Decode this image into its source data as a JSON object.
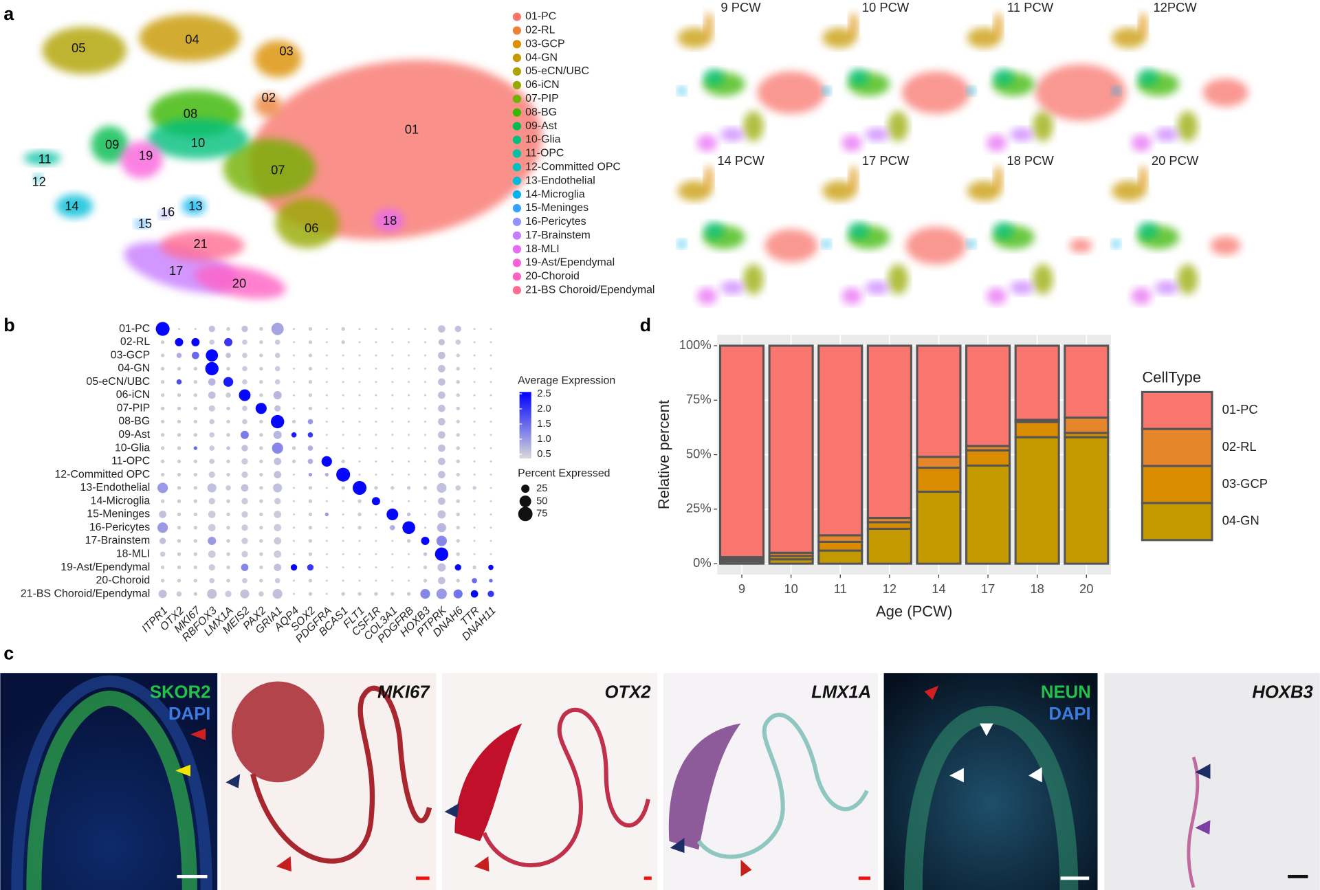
{
  "panel_labels": [
    "a",
    "b",
    "c",
    "d"
  ],
  "umap": {
    "clusters": [
      {
        "name": "01-PC",
        "color": "#f8766d"
      },
      {
        "name": "02-RL",
        "color": "#ec8239"
      },
      {
        "name": "03-GCP",
        "color": "#db8e00"
      },
      {
        "name": "04-GN",
        "color": "#c79800"
      },
      {
        "name": "05-eCN/UBC",
        "color": "#b0a100"
      },
      {
        "name": "06-iCN",
        "color": "#96a900"
      },
      {
        "name": "07-PIP",
        "color": "#72b000"
      },
      {
        "name": "08-BG",
        "color": "#39b600"
      },
      {
        "name": "09-Ast",
        "color": "#00bb4e"
      },
      {
        "name": "10-Glia",
        "color": "#00bf7d"
      },
      {
        "name": "11-OPC",
        "color": "#00c1a3"
      },
      {
        "name": "12-Committed OPC",
        "color": "#00c0c2"
      },
      {
        "name": "13-Endothelial",
        "color": "#00bcd8"
      },
      {
        "name": "14-Microglia",
        "color": "#00b4ef"
      },
      {
        "name": "15-Meninges",
        "color": "#35a2ff"
      },
      {
        "name": "16-Pericytes",
        "color": "#9590ff"
      },
      {
        "name": "17-Brainstem",
        "color": "#c77cff"
      },
      {
        "name": "18-MLI",
        "color": "#e76bf3"
      },
      {
        "name": "19-Ast/Ependymal",
        "color": "#fa62db"
      },
      {
        "name": "20-Choroid",
        "color": "#ff61c3"
      },
      {
        "name": "21-BS Choroid/Ependymal",
        "color": "#ff6c91"
      }
    ],
    "map_labels": [
      "01",
      "02",
      "03",
      "04",
      "05",
      "06",
      "07",
      "08",
      "09",
      "10",
      "11",
      "12",
      "13",
      "14",
      "15",
      "16",
      "17",
      "18",
      "19",
      "20",
      "21"
    ],
    "timepoints": [
      "9 PCW",
      "10 PCW",
      "11 PCW",
      "12PCW",
      "14 PCW",
      "17 PCW",
      "18 PCW",
      "20 PCW"
    ]
  },
  "chart_data": [
    {
      "type": "dot",
      "categories": [
        "ITPR1",
        "OTX2",
        "MKI67",
        "RBFOX3",
        "LMX1A",
        "MEIS2",
        "PAX2",
        "GRIA1",
        "AQP4",
        "SOX2",
        "PDGFRA",
        "BCAS1",
        "FLT1",
        "CSF1R",
        "COL3A1",
        "PDGFRB",
        "HOXB3",
        "PTPRK",
        "DNAH6",
        "TTR",
        "DNAH11"
      ],
      "rows": [
        "01-PC",
        "02-RL",
        "03-GCP",
        "04-GN",
        "05-eCN/UBC",
        "06-iCN",
        "07-PIP",
        "08-BG",
        "09-Ast",
        "10-Glia",
        "11-OPC",
        "12-Committed OPC",
        "13-Endothelial",
        "14-Microglia",
        "15-Meninges",
        "16-Pericytes",
        "17-Brainstem",
        "18-MLI",
        "19-Ast/Ependymal",
        "20-Choroid",
        "21-BS Choroid/Ependymal"
      ],
      "percent": [
        [
          70,
          0,
          0,
          15,
          5,
          15,
          5,
          55,
          0,
          5,
          0,
          5,
          0,
          0,
          0,
          0,
          0,
          20,
          15,
          0,
          0
        ],
        [
          5,
          25,
          25,
          10,
          25,
          10,
          5,
          10,
          0,
          5,
          0,
          5,
          0,
          0,
          0,
          0,
          0,
          15,
          10,
          0,
          0
        ],
        [
          5,
          10,
          20,
          55,
          10,
          10,
          5,
          10,
          0,
          5,
          0,
          0,
          0,
          0,
          0,
          0,
          0,
          20,
          5,
          0,
          0
        ],
        [
          5,
          5,
          5,
          65,
          5,
          10,
          5,
          10,
          0,
          5,
          0,
          0,
          0,
          0,
          0,
          0,
          0,
          20,
          5,
          0,
          0
        ],
        [
          5,
          10,
          5,
          20,
          35,
          10,
          5,
          10,
          0,
          5,
          0,
          0,
          0,
          0,
          0,
          0,
          0,
          20,
          5,
          0,
          0
        ],
        [
          5,
          5,
          5,
          20,
          10,
          50,
          5,
          25,
          0,
          5,
          0,
          0,
          0,
          0,
          0,
          0,
          0,
          20,
          5,
          0,
          0
        ],
        [
          5,
          5,
          5,
          15,
          5,
          10,
          45,
          15,
          0,
          5,
          0,
          0,
          0,
          0,
          0,
          0,
          0,
          20,
          5,
          0,
          0
        ],
        [
          5,
          5,
          5,
          10,
          5,
          10,
          5,
          65,
          5,
          10,
          0,
          0,
          0,
          0,
          0,
          0,
          0,
          20,
          5,
          0,
          0
        ],
        [
          5,
          5,
          5,
          10,
          5,
          25,
          5,
          25,
          10,
          10,
          0,
          0,
          0,
          0,
          0,
          0,
          0,
          20,
          5,
          0,
          0
        ],
        [
          5,
          5,
          5,
          10,
          5,
          15,
          5,
          45,
          5,
          10,
          0,
          0,
          0,
          0,
          0,
          0,
          0,
          20,
          5,
          0,
          0
        ],
        [
          5,
          5,
          5,
          10,
          5,
          15,
          5,
          20,
          5,
          10,
          40,
          5,
          0,
          0,
          0,
          0,
          0,
          20,
          5,
          0,
          0
        ],
        [
          5,
          5,
          5,
          15,
          5,
          15,
          5,
          20,
          0,
          5,
          5,
          70,
          0,
          0,
          0,
          0,
          0,
          20,
          5,
          0,
          0
        ],
        [
          40,
          5,
          5,
          30,
          10,
          20,
          5,
          30,
          0,
          5,
          0,
          5,
          70,
          5,
          5,
          5,
          5,
          35,
          10,
          5,
          0
        ],
        [
          5,
          5,
          5,
          15,
          5,
          15,
          5,
          15,
          0,
          5,
          0,
          0,
          5,
          25,
          0,
          0,
          0,
          20,
          5,
          0,
          0
        ],
        [
          20,
          5,
          5,
          20,
          5,
          15,
          5,
          20,
          0,
          5,
          5,
          0,
          5,
          0,
          50,
          5,
          0,
          25,
          5,
          0,
          0
        ],
        [
          40,
          5,
          5,
          20,
          5,
          15,
          5,
          20,
          0,
          5,
          0,
          0,
          5,
          0,
          10,
          60,
          0,
          30,
          5,
          0,
          0
        ],
        [
          15,
          5,
          5,
          25,
          5,
          15,
          5,
          20,
          0,
          5,
          0,
          0,
          0,
          0,
          0,
          5,
          25,
          40,
          5,
          0,
          0
        ],
        [
          10,
          5,
          5,
          20,
          5,
          15,
          5,
          20,
          0,
          5,
          0,
          0,
          0,
          0,
          0,
          0,
          5,
          65,
          5,
          0,
          0
        ],
        [
          5,
          5,
          5,
          15,
          5,
          20,
          5,
          20,
          15,
          15,
          0,
          0,
          0,
          0,
          0,
          0,
          5,
          25,
          15,
          5,
          10
        ],
        [
          5,
          5,
          5,
          10,
          5,
          10,
          5,
          10,
          0,
          5,
          0,
          0,
          0,
          0,
          0,
          0,
          5,
          20,
          5,
          10,
          5
        ],
        [
          25,
          10,
          5,
          35,
          15,
          30,
          10,
          35,
          0,
          5,
          0,
          5,
          5,
          5,
          5,
          5,
          35,
          40,
          30,
          20,
          15
        ]
      ],
      "expression": [
        [
          2.5,
          0.5,
          0.5,
          0.6,
          0.5,
          0.6,
          0.5,
          0.9,
          0.5,
          0.5,
          0.5,
          0.5,
          0.5,
          0.5,
          0.5,
          0.5,
          0.5,
          0.6,
          0.6,
          0.5,
          0.5
        ],
        [
          0.5,
          2.5,
          2.5,
          0.5,
          2.0,
          0.5,
          0.5,
          0.5,
          0.5,
          0.5,
          0.5,
          0.5,
          0.5,
          0.5,
          0.5,
          0.5,
          0.5,
          0.6,
          0.5,
          0.5,
          0.5
        ],
        [
          0.5,
          0.8,
          1.5,
          2.5,
          0.6,
          0.5,
          0.5,
          0.5,
          0.5,
          0.5,
          0.5,
          0.5,
          0.5,
          0.5,
          0.5,
          0.5,
          0.5,
          0.6,
          0.5,
          0.5,
          0.5
        ],
        [
          0.5,
          0.5,
          0.5,
          2.5,
          0.5,
          0.5,
          0.5,
          0.5,
          0.5,
          0.5,
          0.5,
          0.5,
          0.5,
          0.5,
          0.5,
          0.5,
          0.5,
          0.6,
          0.5,
          0.5,
          0.5
        ],
        [
          0.5,
          1.8,
          0.5,
          0.7,
          2.3,
          0.5,
          0.5,
          0.5,
          0.5,
          0.5,
          0.5,
          0.5,
          0.5,
          0.5,
          0.5,
          0.5,
          0.5,
          0.6,
          0.5,
          0.5,
          0.5
        ],
        [
          0.5,
          0.5,
          0.5,
          0.6,
          0.5,
          2.5,
          0.5,
          0.7,
          0.5,
          0.5,
          0.5,
          0.5,
          0.5,
          0.5,
          0.5,
          0.5,
          0.5,
          0.6,
          0.5,
          0.5,
          0.5
        ],
        [
          0.5,
          0.5,
          0.5,
          0.5,
          0.5,
          0.5,
          2.5,
          0.6,
          0.5,
          0.5,
          0.5,
          0.5,
          0.5,
          0.5,
          0.5,
          0.5,
          0.5,
          0.6,
          0.5,
          0.5,
          0.5
        ],
        [
          0.5,
          0.5,
          0.5,
          0.5,
          0.5,
          0.5,
          0.5,
          2.5,
          0.5,
          1.0,
          0.5,
          0.5,
          0.5,
          0.5,
          0.5,
          0.5,
          0.5,
          0.6,
          0.5,
          0.5,
          0.5
        ],
        [
          0.5,
          0.5,
          0.5,
          0.5,
          0.5,
          1.3,
          0.5,
          0.7,
          2.3,
          2.0,
          0.5,
          0.5,
          0.5,
          0.5,
          0.5,
          0.5,
          0.5,
          0.6,
          0.5,
          0.5,
          0.5
        ],
        [
          0.5,
          0.5,
          1.5,
          0.5,
          0.6,
          0.6,
          0.5,
          1.2,
          0.5,
          0.8,
          0.5,
          0.5,
          0.5,
          0.5,
          0.5,
          0.5,
          0.5,
          0.6,
          0.5,
          0.5,
          0.5
        ],
        [
          0.5,
          0.5,
          0.5,
          0.5,
          0.5,
          0.5,
          0.5,
          0.6,
          0.5,
          0.8,
          2.5,
          0.5,
          0.5,
          0.5,
          0.5,
          0.5,
          0.5,
          0.6,
          0.5,
          0.5,
          0.5
        ],
        [
          0.5,
          0.5,
          0.5,
          0.5,
          0.5,
          0.5,
          0.5,
          0.6,
          0.5,
          1.0,
          0.8,
          2.5,
          0.5,
          0.5,
          0.5,
          0.5,
          0.5,
          0.6,
          0.5,
          0.5,
          0.5
        ],
        [
          1.0,
          0.5,
          0.5,
          0.6,
          0.5,
          0.6,
          0.5,
          0.6,
          0.5,
          0.5,
          0.5,
          0.5,
          2.5,
          0.5,
          0.5,
          0.5,
          0.5,
          0.6,
          0.5,
          0.5,
          0.5
        ],
        [
          0.5,
          0.5,
          0.5,
          0.5,
          0.5,
          0.5,
          0.5,
          0.5,
          0.5,
          0.5,
          0.5,
          0.5,
          0.5,
          2.5,
          0.5,
          0.5,
          0.5,
          0.6,
          0.5,
          0.5,
          0.5
        ],
        [
          0.6,
          0.5,
          0.5,
          0.5,
          0.5,
          0.5,
          0.5,
          0.5,
          0.5,
          0.5,
          1.0,
          0.5,
          0.5,
          0.5,
          2.5,
          0.6,
          0.5,
          0.6,
          0.5,
          0.5,
          0.5
        ],
        [
          1.0,
          0.5,
          0.5,
          0.5,
          0.5,
          0.5,
          0.5,
          0.5,
          0.5,
          0.5,
          0.5,
          0.5,
          0.5,
          0.5,
          0.8,
          2.5,
          0.5,
          0.7,
          0.5,
          0.5,
          0.5
        ],
        [
          0.6,
          0.5,
          0.5,
          1.0,
          0.5,
          0.5,
          0.5,
          0.5,
          0.5,
          0.5,
          0.5,
          0.5,
          0.5,
          0.5,
          0.5,
          0.5,
          2.5,
          1.2,
          0.5,
          0.5,
          0.5
        ],
        [
          0.5,
          0.5,
          0.5,
          0.5,
          0.5,
          0.5,
          0.5,
          0.5,
          0.5,
          0.5,
          0.5,
          0.5,
          0.5,
          0.5,
          0.5,
          0.5,
          0.6,
          2.5,
          0.5,
          0.5,
          0.5
        ],
        [
          0.5,
          0.5,
          0.5,
          0.5,
          0.5,
          1.2,
          0.5,
          0.6,
          2.5,
          2.0,
          0.5,
          0.5,
          0.5,
          0.5,
          0.5,
          0.5,
          0.5,
          0.6,
          2.5,
          0.5,
          2.5
        ],
        [
          0.5,
          0.5,
          0.5,
          0.5,
          0.5,
          0.5,
          0.5,
          0.5,
          0.5,
          0.5,
          0.5,
          0.5,
          0.5,
          0.5,
          0.5,
          0.5,
          0.5,
          0.6,
          0.5,
          1.5,
          1.5
        ],
        [
          0.6,
          0.5,
          0.5,
          0.6,
          0.5,
          0.6,
          0.5,
          0.6,
          0.5,
          0.5,
          0.5,
          0.5,
          0.5,
          0.5,
          0.5,
          0.5,
          1.2,
          1.0,
          1.4,
          2.5,
          2.0
        ]
      ],
      "color_title": "Average Expression",
      "color_lim": [
        0.36,
        2.56
      ],
      "color_low": "#d9d9d9",
      "color_high": "#0000ff",
      "color_ticks": [
        2.5,
        {
          "value": 2,
          "label": "2.0"
        },
        1.5,
        {
          "value": 1,
          "label": "1.0"
        },
        0.5
      ],
      "size_title": "Percent Expressed",
      "size_ticks": [
        25,
        50,
        75
      ]
    },
    {
      "type": "stacked_bar",
      "categories": [
        "9",
        "10",
        "11",
        "12",
        "14",
        "17",
        "18",
        "20"
      ],
      "series": [
        {
          "name": "01-PC",
          "color": "#f8766d",
          "values": [
            97,
            95,
            87,
            79,
            51,
            46,
            34,
            33
          ]
        },
        {
          "name": "02-RL",
          "color": "#e5862b",
          "values": [
            1,
            1.5,
            3,
            2,
            5,
            2,
            1,
            7
          ]
        },
        {
          "name": "03-GCP",
          "color": "#d98c00",
          "values": [
            1,
            1.5,
            4,
            3,
            11,
            7,
            7,
            2
          ]
        },
        {
          "name": "04-GN",
          "color": "#c49a00",
          "values": [
            1,
            2,
            6,
            16,
            33,
            45,
            58,
            58
          ]
        }
      ],
      "xlabel": "Age (PCW)",
      "ylabel": "Relative percent",
      "legend_title": "CellType",
      "ylim": [
        -5,
        105
      ],
      "yticks": [
        {
          "value": 0,
          "label": "0%"
        },
        {
          "value": 25,
          "label": "25%"
        },
        {
          "value": 50,
          "label": "50%"
        },
        {
          "value": 75,
          "label": "75%"
        },
        {
          "value": 100,
          "label": "100%"
        }
      ],
      "grid": true,
      "legend": "right"
    }
  ],
  "micrographs": [
    {
      "labels": [
        "SKOR2",
        "DAPI"
      ]
    },
    {
      "labels": [
        "MKI67"
      ]
    },
    {
      "labels": [
        "OTX2"
      ]
    },
    {
      "labels": [
        "LMX1A"
      ]
    },
    {
      "labels": [
        "NEUN",
        "DAPI"
      ]
    },
    {
      "labels": [
        "HOXB3"
      ]
    }
  ]
}
